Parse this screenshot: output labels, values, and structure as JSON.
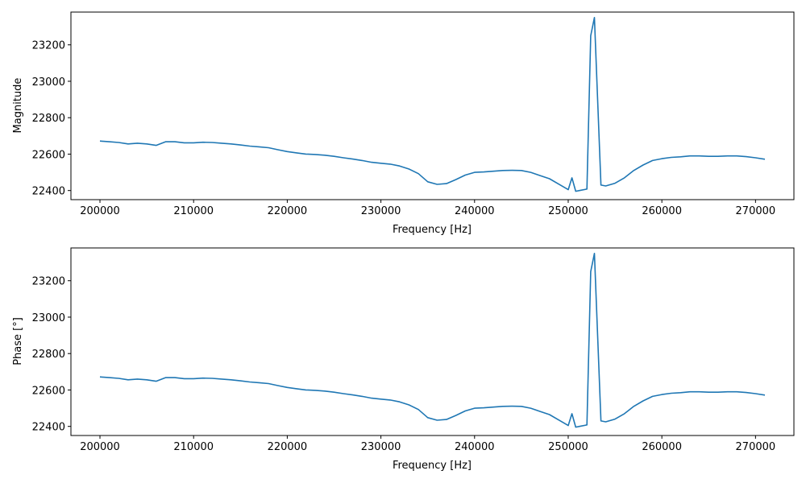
{
  "chart_data": [
    {
      "type": "line",
      "xlabel": "Frequency [Hz]",
      "ylabel": "Magnitude",
      "xlim": [
        196900,
        274100
      ],
      "ylim": [
        22350,
        23380
      ],
      "xticks": [
        200000,
        210000,
        220000,
        230000,
        240000,
        250000,
        260000,
        270000
      ],
      "yticks": [
        22400,
        22600,
        22800,
        23000,
        23200
      ],
      "grid": false,
      "color": "#1f77b4",
      "series": [
        {
          "x": [
            200000,
            201000,
            202000,
            203000,
            204000,
            205000,
            206000,
            207000,
            208000,
            209000,
            210000,
            211000,
            212000,
            213000,
            214000,
            215000,
            216000,
            217000,
            218000,
            219000,
            220000,
            221000,
            222000,
            223000,
            224000,
            225000,
            226000,
            227000,
            228000,
            229000,
            230000,
            231000,
            232000,
            233000,
            234000,
            235000,
            236000,
            237000,
            238000,
            239000,
            240000,
            241000,
            242000,
            243000,
            244000,
            245000,
            246000,
            247000,
            248000,
            249000,
            250000,
            250400,
            250800,
            251200,
            252000,
            252400,
            252800,
            253500,
            254000,
            255000,
            256000,
            257000,
            258000,
            259000,
            260000,
            261000,
            262000,
            263000,
            264000,
            265000,
            266000,
            267000,
            268000,
            269000,
            270000,
            271000
          ],
          "y": [
            22672,
            22668,
            22664,
            22656,
            22660,
            22656,
            22648,
            22668,
            22668,
            22662,
            22662,
            22665,
            22664,
            22660,
            22656,
            22650,
            22644,
            22640,
            22635,
            22624,
            22614,
            22607,
            22600,
            22598,
            22594,
            22588,
            22580,
            22573,
            22565,
            22555,
            22550,
            22545,
            22535,
            22518,
            22493,
            22448,
            22434,
            22438,
            22460,
            22485,
            22500,
            22502,
            22506,
            22510,
            22511,
            22510,
            22500,
            22482,
            22465,
            22435,
            22405,
            22470,
            22396,
            22400,
            22408,
            23250,
            23350,
            22430,
            22425,
            22440,
            22470,
            22510,
            22540,
            22565,
            22575,
            22582,
            22585,
            22590,
            22590,
            22588,
            22588,
            22590,
            22590,
            22586,
            22580,
            22572
          ]
        }
      ]
    },
    {
      "type": "line",
      "xlabel": "Frequency [Hz]",
      "ylabel": "Phase [°]",
      "xlim": [
        196900,
        274100
      ],
      "ylim": [
        22350,
        23380
      ],
      "xticks": [
        200000,
        210000,
        220000,
        230000,
        240000,
        250000,
        260000,
        270000
      ],
      "yticks": [
        22400,
        22600,
        22800,
        23000,
        23200
      ],
      "grid": false,
      "color": "#1f77b4",
      "series": [
        {
          "x": [
            200000,
            201000,
            202000,
            203000,
            204000,
            205000,
            206000,
            207000,
            208000,
            209000,
            210000,
            211000,
            212000,
            213000,
            214000,
            215000,
            216000,
            217000,
            218000,
            219000,
            220000,
            221000,
            222000,
            223000,
            224000,
            225000,
            226000,
            227000,
            228000,
            229000,
            230000,
            231000,
            232000,
            233000,
            234000,
            235000,
            236000,
            237000,
            238000,
            239000,
            240000,
            241000,
            242000,
            243000,
            244000,
            245000,
            246000,
            247000,
            248000,
            249000,
            250000,
            250400,
            250800,
            251200,
            252000,
            252400,
            252800,
            253500,
            254000,
            255000,
            256000,
            257000,
            258000,
            259000,
            260000,
            261000,
            262000,
            263000,
            264000,
            265000,
            266000,
            267000,
            268000,
            269000,
            270000,
            271000
          ],
          "y": [
            22672,
            22668,
            22664,
            22656,
            22660,
            22656,
            22648,
            22668,
            22668,
            22662,
            22662,
            22665,
            22664,
            22660,
            22656,
            22650,
            22644,
            22640,
            22635,
            22624,
            22614,
            22607,
            22600,
            22598,
            22594,
            22588,
            22580,
            22573,
            22565,
            22555,
            22550,
            22545,
            22535,
            22518,
            22493,
            22448,
            22434,
            22438,
            22460,
            22485,
            22500,
            22502,
            22506,
            22510,
            22511,
            22510,
            22500,
            22482,
            22465,
            22435,
            22405,
            22470,
            22396,
            22400,
            22408,
            23250,
            23350,
            22430,
            22425,
            22440,
            22470,
            22510,
            22540,
            22565,
            22575,
            22582,
            22585,
            22590,
            22590,
            22588,
            22588,
            22590,
            22590,
            22586,
            22580,
            22572
          ]
        }
      ]
    }
  ]
}
